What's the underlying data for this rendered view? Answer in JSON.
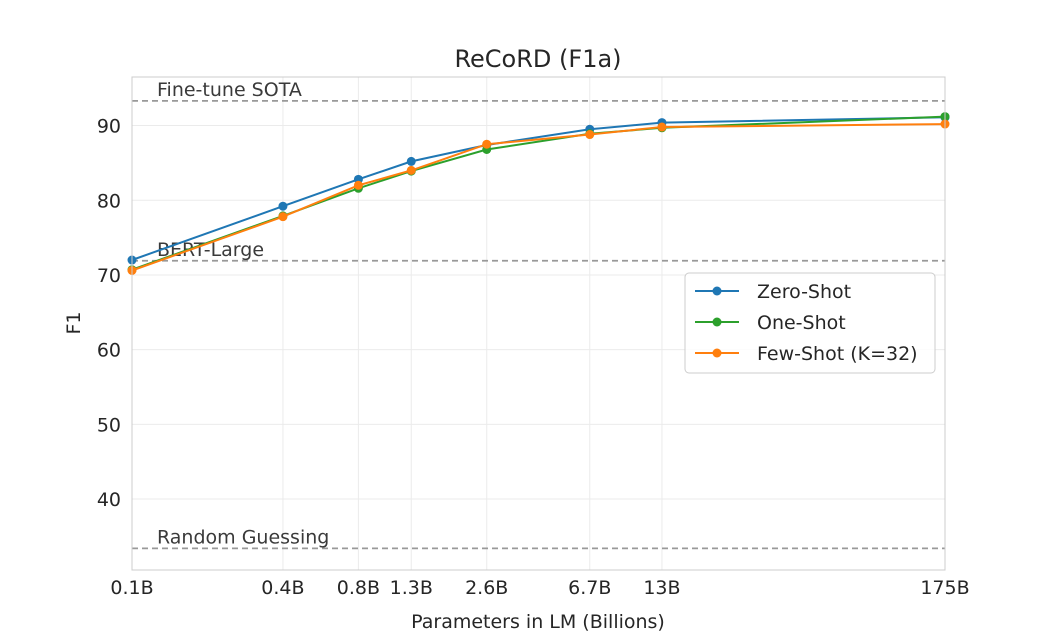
{
  "chart_data": {
    "type": "line",
    "title": "ReCoRD (F1a)",
    "xlabel": "Parameters in LM (Billions)",
    "ylabel": "F1",
    "x_scale": "log",
    "x_values": [
      0.1,
      0.4,
      0.8,
      1.3,
      2.6,
      6.7,
      13,
      175
    ],
    "x_tick_labels": [
      "0.1B",
      "0.4B",
      "0.8B",
      "1.3B",
      "2.6B",
      "6.7B",
      "13B",
      "175B"
    ],
    "y_ticks": [
      40,
      50,
      60,
      70,
      80,
      90
    ],
    "ylim": [
      30.5,
      96.5
    ],
    "grid": true,
    "legend_position": "center-right",
    "series": [
      {
        "name": "Zero-Shot",
        "color": "#1f77b4",
        "values": [
          72.0,
          79.2,
          82.8,
          85.2,
          87.4,
          89.5,
          90.4,
          91.1
        ]
      },
      {
        "name": "One-Shot",
        "color": "#2ca02c",
        "values": [
          70.7,
          77.9,
          81.6,
          83.9,
          86.8,
          88.9,
          89.7,
          91.2
        ]
      },
      {
        "name": "Few-Shot (K=32)",
        "color": "#ff7f0e",
        "values": [
          70.6,
          77.8,
          82.0,
          84.0,
          87.5,
          88.8,
          89.8,
          90.2
        ]
      }
    ],
    "reference_lines": [
      {
        "label": "Fine-tune SOTA",
        "y": 93.3
      },
      {
        "label": "BERT-Large",
        "y": 71.9
      },
      {
        "label": "Random Guessing",
        "y": 33.4
      }
    ]
  }
}
